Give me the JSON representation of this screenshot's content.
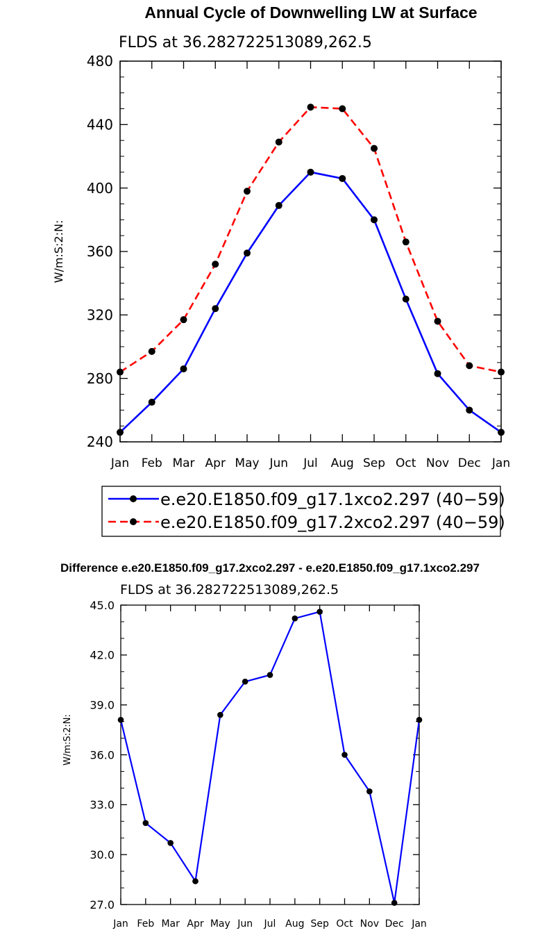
{
  "chart_data": [
    {
      "type": "line",
      "title": "Annual Cycle of Downwelling LW at Surface",
      "subtitle": "FLDS at 36.282722513089,262.5",
      "ylabel": "W/m:S:2:N:",
      "xlabel": "",
      "categories": [
        "Jan",
        "Feb",
        "Mar",
        "Apr",
        "May",
        "Jun",
        "Jul",
        "Aug",
        "Sep",
        "Oct",
        "Nov",
        "Dec",
        "Jan"
      ],
      "ylim": [
        240,
        480
      ],
      "yticks": [
        "240",
        "280",
        "320",
        "360",
        "400",
        "440",
        "480"
      ],
      "ytick_values": [
        240,
        280,
        320,
        360,
        400,
        440,
        480
      ],
      "grid": false,
      "legend_position": "bottom",
      "series": [
        {
          "name": "e.e20.E1850.f09_g17.1xco2.297 (40−59)",
          "color": "#0000ff",
          "dash": "solid",
          "values": [
            246,
            265,
            286,
            324,
            359,
            389,
            410,
            406,
            380,
            330,
            283,
            260,
            246
          ]
        },
        {
          "name": "e.e20.E1850.f09_g17.2xco2.297 (40−59)",
          "color": "#ff0000",
          "dash": "dashed",
          "values": [
            284,
            297,
            317,
            352,
            398,
            429,
            451,
            450,
            425,
            366,
            316,
            288,
            284
          ]
        }
      ]
    },
    {
      "type": "line",
      "title": "Difference e.e20.E1850.f09_g17.2xco2.297 - e.e20.E1850.f09_g17.1xco2.297",
      "subtitle": "FLDS at 36.282722513089,262.5",
      "ylabel": "W/m:S:2:N:",
      "xlabel": "",
      "categories": [
        "Jan",
        "Feb",
        "Mar",
        "Apr",
        "May",
        "Jun",
        "Jul",
        "Aug",
        "Sep",
        "Oct",
        "Nov",
        "Dec",
        "Jan"
      ],
      "ylim": [
        27.0,
        45.0
      ],
      "yticks": [
        "27.0",
        "30.0",
        "33.0",
        "36.0",
        "39.0",
        "42.0",
        "45.0"
      ],
      "ytick_values": [
        27.0,
        30.0,
        33.0,
        36.0,
        39.0,
        42.0,
        45.0
      ],
      "grid": false,
      "series": [
        {
          "name": "difference",
          "color": "#0000ff",
          "dash": "solid",
          "values": [
            38.1,
            31.9,
            30.7,
            28.4,
            38.4,
            40.4,
            40.8,
            44.2,
            44.6,
            36.0,
            33.8,
            27.1,
            38.1
          ]
        }
      ]
    }
  ]
}
